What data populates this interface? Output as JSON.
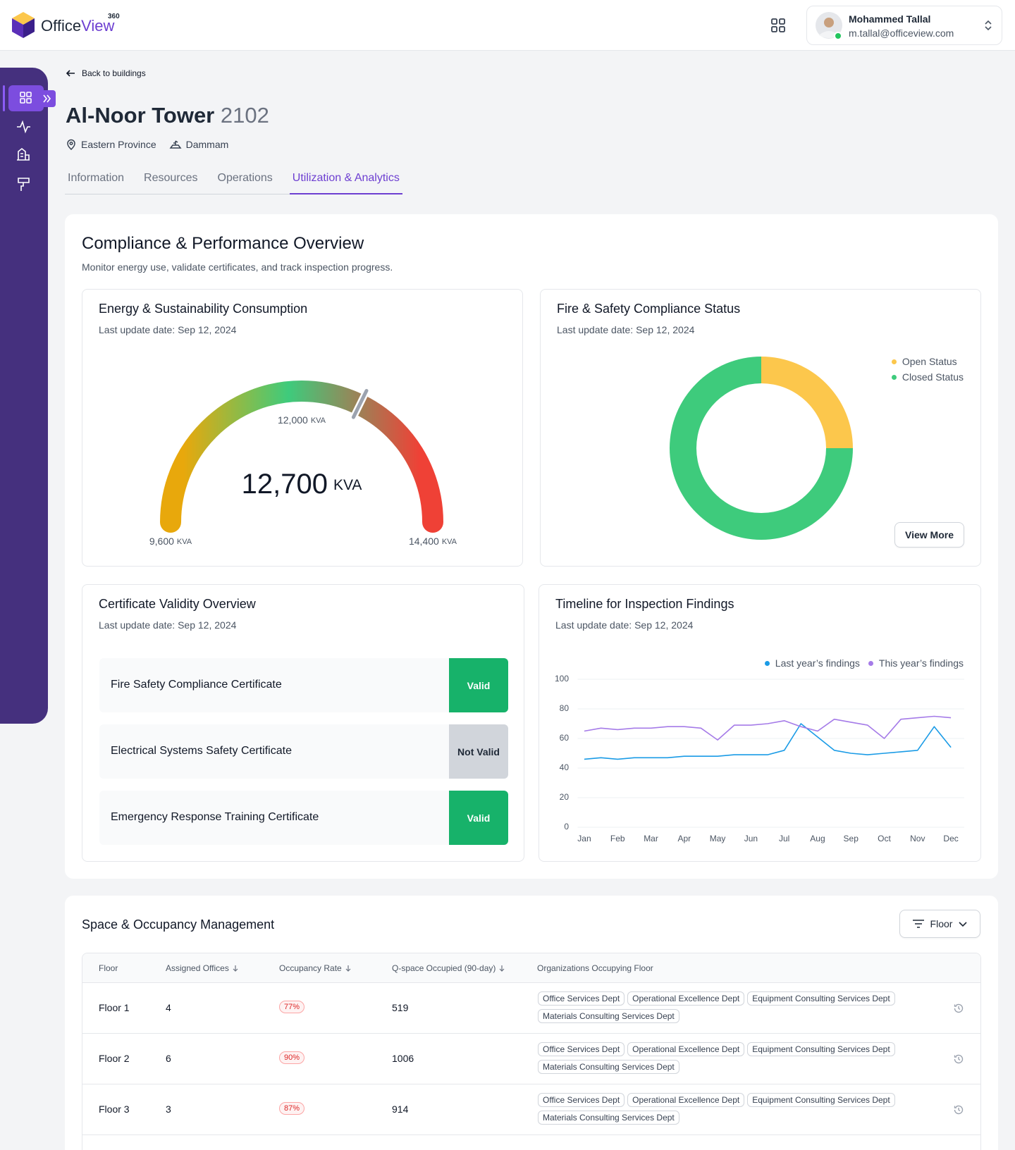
{
  "header": {
    "brand": {
      "prefix": "Office",
      "highlight": "View",
      "superscript": "360"
    },
    "user": {
      "name": "Mohammed Tallal",
      "email": "m.tallal@officeview.com"
    }
  },
  "back_link": "Back to buildings",
  "building": {
    "name": "Al-Noor Tower",
    "number": "2102",
    "region": "Eastern Province",
    "city": "Dammam"
  },
  "tabs": {
    "items": [
      "Information",
      "Resources",
      "Operations",
      "Utilization & Analytics"
    ],
    "active": 3
  },
  "overview": {
    "title": "Compliance & Performance Overview",
    "subtitle": "Monitor energy use, validate certificates, and track inspection progress."
  },
  "chart_data": [
    {
      "type": "gauge",
      "title": "Energy & Sustainability Consumption",
      "subtitle": "Last update date: Sep 12, 2024",
      "value": 12700,
      "value_label": "12,700",
      "unit": "KVA",
      "lim": [
        9600,
        14400
      ],
      "ticks": [
        {
          "value": 9600,
          "label": "9,600"
        },
        {
          "value": 12000,
          "label": "12,000"
        },
        {
          "value": 14400,
          "label": "14,400"
        }
      ],
      "colors": [
        "#e8a80c",
        "#3ecb7c",
        "#ef4136"
      ]
    },
    {
      "type": "pie",
      "title": "Fire & Safety Compliance Status",
      "subtitle": "Last update date: Sep 12, 2024",
      "categories": [
        "Open Status",
        "Closed Status"
      ],
      "values": [
        25,
        75
      ],
      "colors": [
        "#fcc74c",
        "#3ecb7c"
      ],
      "legend": "top-right",
      "button": "View More"
    },
    {
      "type": "line",
      "title": "Timeline for Inspection Findings",
      "subtitle": "Last update date: Sep 12, 2024",
      "x": [
        0,
        0.5,
        1,
        1.5,
        2,
        2.5,
        3,
        3.5,
        4,
        4.5,
        5,
        5.5,
        6,
        6.5,
        7,
        7.5,
        8,
        8.5,
        9,
        9.5,
        10,
        10.5,
        11
      ],
      "xlim": [
        -0.2,
        11.4
      ],
      "xticks": [
        {
          "value": 0,
          "label": "Jan"
        },
        {
          "value": 1,
          "label": "Feb"
        },
        {
          "value": 2,
          "label": "Mar"
        },
        {
          "value": 3,
          "label": "Apr"
        },
        {
          "value": 4,
          "label": "May"
        },
        {
          "value": 5,
          "label": "Jun"
        },
        {
          "value": 6,
          "label": "Jul"
        },
        {
          "value": 7,
          "label": "Aug"
        },
        {
          "value": 8,
          "label": "Sep"
        },
        {
          "value": 9,
          "label": "Oct"
        },
        {
          "value": 10,
          "label": "Nov"
        },
        {
          "value": 11,
          "label": "Dec"
        }
      ],
      "ylim": [
        0,
        100
      ],
      "yticks": [
        0,
        20,
        40,
        60,
        80,
        100
      ],
      "grid": true,
      "legend": "top-right",
      "series": [
        {
          "name": "Last year’s findings",
          "color": "#1a9be6",
          "values": [
            46,
            47,
            46,
            47,
            47,
            47,
            48,
            48,
            48,
            49,
            49,
            49,
            52,
            70,
            61,
            52,
            50,
            49,
            50,
            51,
            52,
            68,
            54
          ]
        },
        {
          "name": "This year’s findings",
          "color": "#a57be8",
          "values": [
            65,
            67,
            66,
            67,
            67,
            68,
            68,
            67,
            59,
            69,
            69,
            70,
            72,
            68,
            65,
            73,
            71,
            69,
            60,
            73,
            74,
            75,
            74
          ]
        }
      ]
    }
  ],
  "certificates": {
    "title": "Certificate Validity Overview",
    "subtitle": "Last update date: Sep 12, 2024",
    "items": [
      {
        "name": "Fire Safety Compliance Certificate",
        "status": "Valid",
        "color": "#17b26a"
      },
      {
        "name": "Electrical Systems Safety Certificate",
        "status": "Not Valid",
        "color": "#d1d5db"
      },
      {
        "name": "Emergency Response Training Certificate",
        "status": "Valid",
        "color": "#17b26a"
      }
    ]
  },
  "space": {
    "title": "Space & Occupancy Management",
    "filter": "Floor",
    "columns": [
      "Floor",
      "Assigned Offices",
      "Occupancy Rate",
      "Q-space Occupied (90-day)",
      "Organizations Occupying Floor"
    ],
    "rows": [
      {
        "floor": "Floor 1",
        "offices": "4",
        "occupancy": "77%",
        "q_space": "519",
        "organizations": [
          "Office Services Dept",
          "Operational Excellence Dept",
          "Equipment Consulting Services Dept",
          "Materials Consulting Services Dept"
        ]
      },
      {
        "floor": "Floor 2",
        "offices": "6",
        "occupancy": "90%",
        "q_space": "1006",
        "organizations": [
          "Office Services Dept",
          "Operational Excellence Dept",
          "Equipment Consulting Services Dept",
          "Materials Consulting Services Dept"
        ]
      },
      {
        "floor": "Floor 3",
        "offices": "3",
        "occupancy": "87%",
        "q_space": "914",
        "organizations": [
          "Office Services Dept",
          "Operational Excellence Dept",
          "Equipment Consulting Services Dept",
          "Materials Consulting Services Dept"
        ]
      }
    ]
  }
}
